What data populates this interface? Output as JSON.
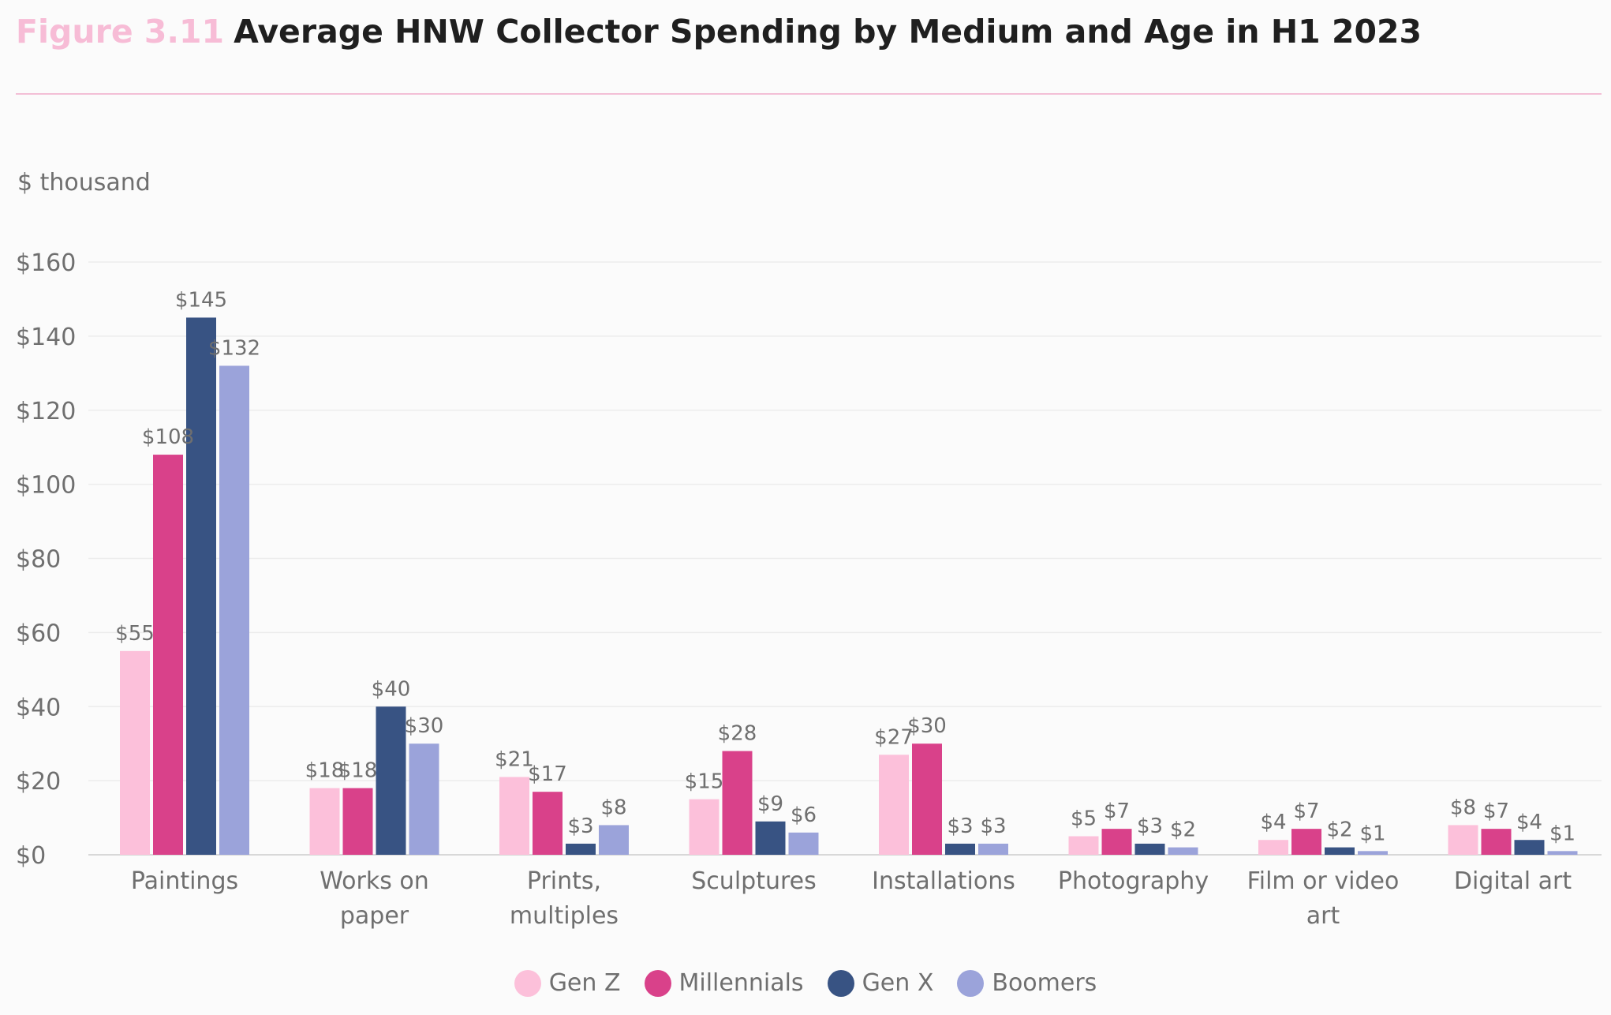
{
  "header": {
    "figure_label": "Figure 3.11",
    "title": "Average HNW Collector Spending by Medium and Age in H1 2023"
  },
  "chart_data": {
    "type": "bar",
    "ylabel": "$ thousand",
    "ylim": [
      0,
      160
    ],
    "yticks": [
      0,
      20,
      40,
      60,
      80,
      100,
      120,
      140,
      160
    ],
    "ytick_labels": [
      "$0",
      "$20",
      "$40",
      "$60",
      "$80",
      "$100",
      "$120",
      "$140",
      "$160"
    ],
    "grid": true,
    "legend_position": "bottom-center",
    "categories": [
      [
        "Paintings"
      ],
      [
        "Works on",
        "paper"
      ],
      [
        "Prints,",
        "multiples"
      ],
      [
        "Sculptures"
      ],
      [
        "Installations"
      ],
      [
        "Photography"
      ],
      [
        "Film or video",
        "art"
      ],
      [
        "Digital art"
      ]
    ],
    "series": [
      {
        "name": "Gen Z",
        "color": "#fcc0da",
        "values": [
          55,
          18,
          21,
          15,
          27,
          5,
          4,
          8
        ],
        "labels": [
          "$55",
          "$18",
          "$21",
          "$15",
          "$27",
          "$5",
          "$4",
          "$8"
        ]
      },
      {
        "name": "Millennials",
        "color": "#d9418a",
        "values": [
          108,
          18,
          17,
          28,
          30,
          7,
          7,
          7
        ],
        "labels": [
          "$108",
          "$18",
          "$17",
          "$28",
          "$30",
          "$7",
          "$7",
          "$7"
        ]
      },
      {
        "name": "Gen X",
        "color": "#385383",
        "values": [
          145,
          40,
          3,
          9,
          3,
          3,
          2,
          4
        ],
        "labels": [
          "$145",
          "$40",
          "$3",
          "$9",
          "$3",
          "$3",
          "$2",
          "$4"
        ]
      },
      {
        "name": "Boomers",
        "color": "#9ba3da",
        "values": [
          132,
          30,
          8,
          6,
          3,
          2,
          1,
          1
        ],
        "labels": [
          "$132",
          "$30",
          "$8",
          "$6",
          "$3",
          "$2",
          "$1",
          "$1"
        ]
      }
    ]
  }
}
